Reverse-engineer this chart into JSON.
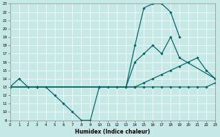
{
  "xlabel": "Humidex (Indice chaleur)",
  "xlim": [
    0,
    23
  ],
  "ylim": [
    9,
    23
  ],
  "xticks": [
    0,
    1,
    2,
    3,
    4,
    5,
    6,
    7,
    8,
    9,
    10,
    11,
    12,
    13,
    14,
    15,
    16,
    17,
    18,
    19,
    20,
    21,
    22,
    23
  ],
  "yticks": [
    9,
    10,
    11,
    12,
    13,
    14,
    15,
    16,
    17,
    18,
    19,
    20,
    21,
    22,
    23
  ],
  "background_color": "#c6e8e6",
  "grid_color": "#ffffff",
  "line_color": "#006666",
  "series1_x": [
    0,
    1,
    2,
    3,
    4,
    5,
    6,
    7,
    8,
    9,
    10,
    11,
    12,
    13,
    14,
    15,
    16,
    17,
    18,
    19
  ],
  "series1_y": [
    13,
    14,
    13,
    13,
    13,
    12,
    11,
    10,
    9,
    9,
    13,
    13,
    13,
    13,
    18,
    22.5,
    23,
    23,
    22,
    19
  ],
  "series2_x": [
    0,
    3,
    10,
    13,
    14,
    15,
    16,
    17,
    18,
    19,
    23
  ],
  "series2_y": [
    13,
    13,
    13,
    13,
    16,
    17,
    18,
    17,
    19,
    16.5,
    14
  ],
  "series3_x": [
    0,
    3,
    10,
    14,
    15,
    16,
    17,
    18,
    19,
    20,
    21,
    22,
    23
  ],
  "series3_y": [
    13,
    13,
    13,
    13,
    13.5,
    14,
    14.5,
    15,
    15.5,
    16,
    16.5,
    15,
    14
  ],
  "series4_x": [
    0,
    3,
    10,
    14,
    15,
    16,
    17,
    18,
    19,
    20,
    21,
    22,
    23
  ],
  "series4_y": [
    13,
    13,
    13,
    13,
    13,
    13,
    13,
    13,
    13,
    13,
    13,
    13,
    13.5
  ]
}
